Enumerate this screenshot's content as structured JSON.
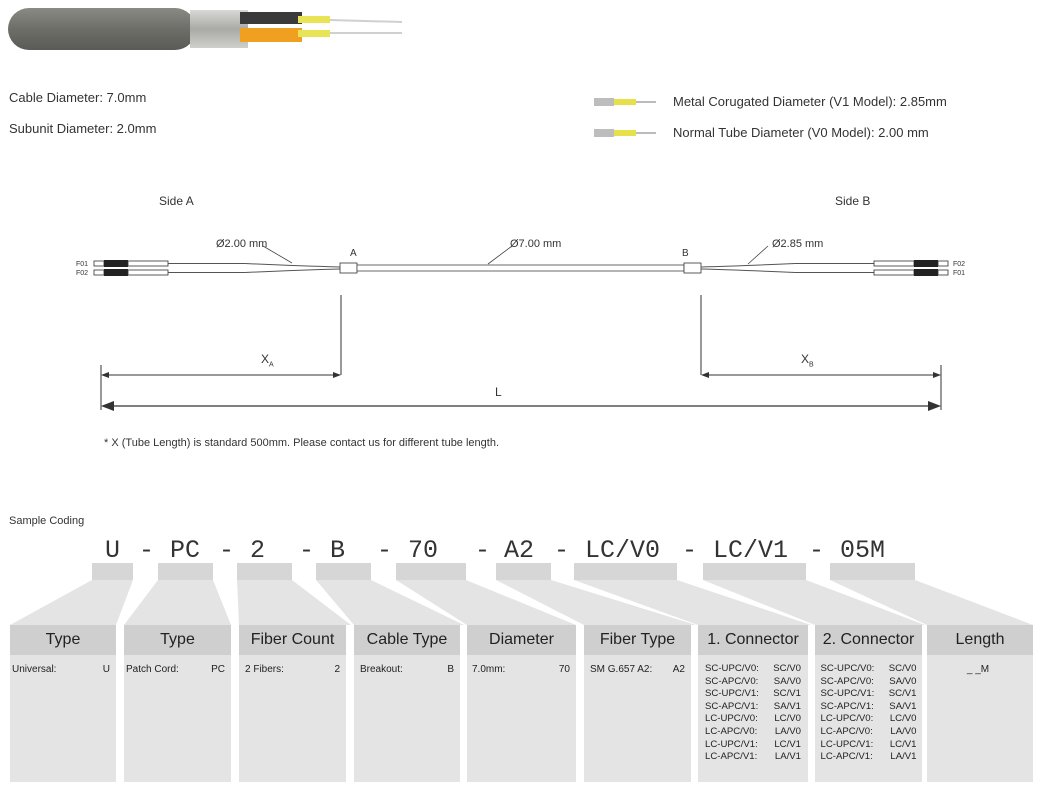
{
  "specs": {
    "cable_diameter": "Cable Diameter: 7.0mm",
    "subunit_diameter": "Subunit Diameter: 2.0mm",
    "metal_corrugated": "Metal Corugated Diameter (V1 Model): 2.85mm",
    "normal_tube": "Normal Tube Diameter (V0 Model): 2.00 mm"
  },
  "drawing": {
    "side_a": "Side A",
    "side_b": "Side B",
    "dia_a": "Ø2.00 mm",
    "dia_main": "Ø7.00 mm",
    "dia_b": "Ø2.85 mm",
    "point_a": "A",
    "point_b": "B",
    "f01": "F01",
    "f02": "F02",
    "x_letter": "X",
    "x_a_sub": "A",
    "x_b_sub": "B",
    "length": "L"
  },
  "footnote": "* X (Tube Length) is standard 500mm. Please contact us for different tube length.",
  "coding": {
    "title": "Sample Coding",
    "segments": [
      "U",
      "-",
      "PC",
      "-",
      "2",
      "-",
      "B",
      "-",
      "70",
      "-",
      "A2",
      "-",
      "LC/V0",
      "-",
      "LC/V1",
      "-",
      "05M"
    ]
  },
  "boxes": [
    {
      "header": "Type",
      "rows": [
        [
          "Universal:",
          "U"
        ]
      ]
    },
    {
      "header": "Type",
      "rows": [
        [
          "Patch Cord:",
          "PC"
        ]
      ]
    },
    {
      "header": "Fiber Count",
      "rows": [
        [
          "2 Fibers:",
          "2"
        ]
      ]
    },
    {
      "header": "Cable Type",
      "rows": [
        [
          "Breakout:",
          "B"
        ]
      ]
    },
    {
      "header": "Diameter",
      "rows": [
        [
          "7.0mm:",
          "70"
        ]
      ]
    },
    {
      "header": "Fiber Type",
      "rows": [
        [
          "SM G.657 A2:",
          "A2"
        ]
      ]
    },
    {
      "header": "1. Connector",
      "rows": [
        [
          "SC-UPC/V0:",
          "SC/V0"
        ],
        [
          "SC-APC/V0:",
          "SA/V0"
        ],
        [
          "SC-UPC/V1:",
          "SC/V1"
        ],
        [
          "SC-APC/V1:",
          "SA/V1"
        ],
        [
          "LC-UPC/V0:",
          "LC/V0"
        ],
        [
          "LC-APC/V0:",
          "LA/V0"
        ],
        [
          "LC-UPC/V1:",
          "LC/V1"
        ],
        [
          "LC-APC/V1:",
          "LA/V1"
        ]
      ]
    },
    {
      "header": "2. Connector",
      "rows": [
        [
          "SC-UPC/V0:",
          "SC/V0"
        ],
        [
          "SC-APC/V0:",
          "SA/V0"
        ],
        [
          "SC-UPC/V1:",
          "SC/V1"
        ],
        [
          "SC-APC/V1:",
          "SA/V1"
        ],
        [
          "LC-UPC/V0:",
          "LC/V0"
        ],
        [
          "LC-APC/V0:",
          "LA/V0"
        ],
        [
          "LC-UPC/V1:",
          "LC/V1"
        ],
        [
          "LC-APC/V1:",
          "LA/V1"
        ]
      ]
    },
    {
      "header": "Length",
      "rows": [
        [
          "",
          "_ _M"
        ]
      ]
    }
  ]
}
